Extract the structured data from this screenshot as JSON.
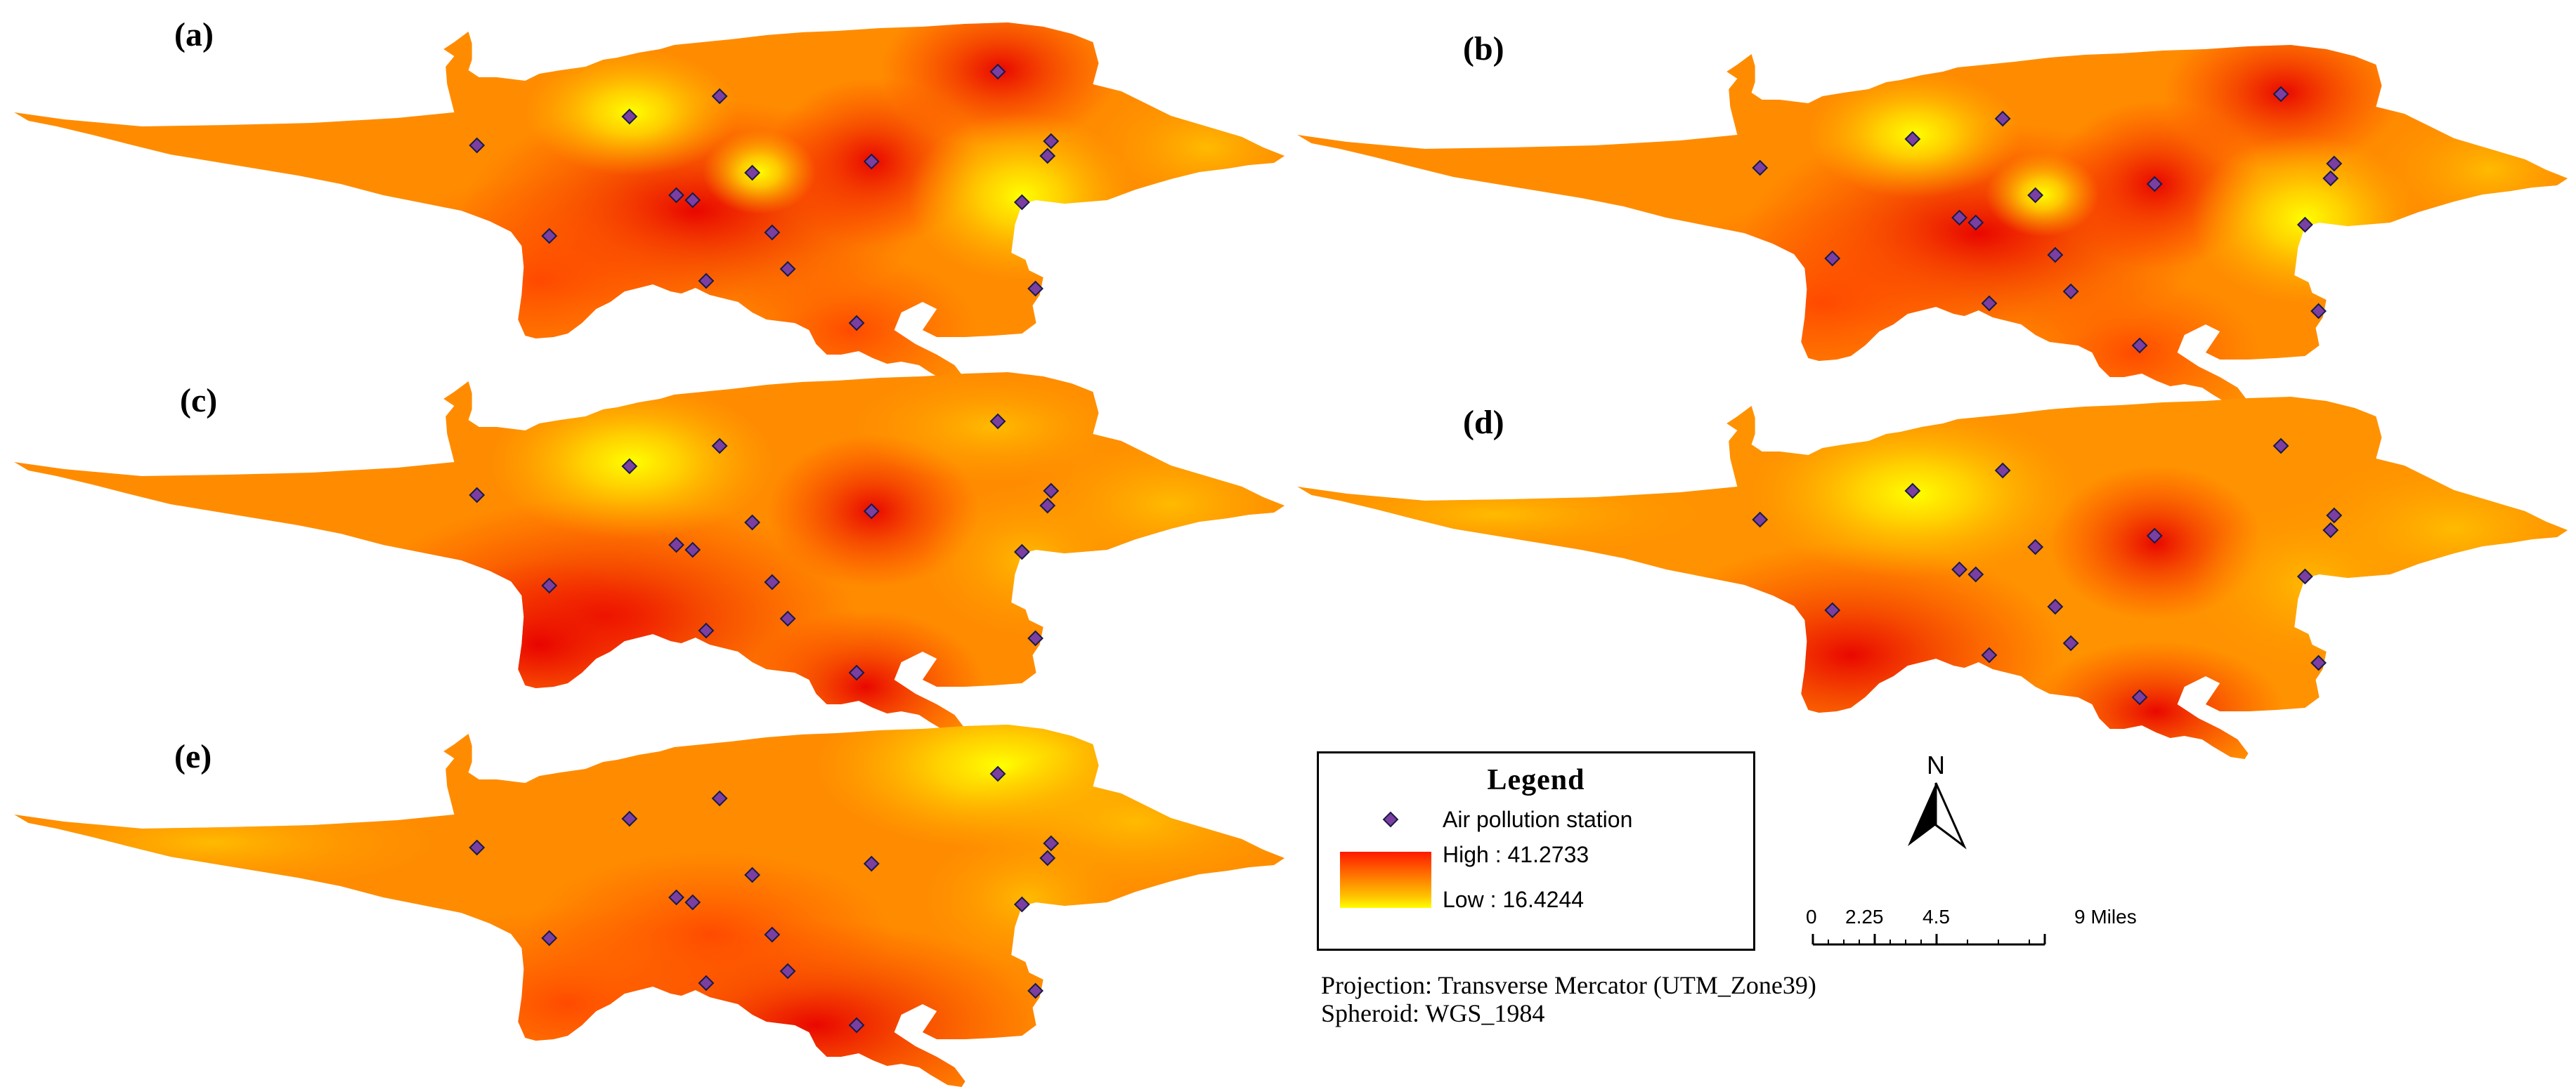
{
  "panels": [
    {
      "label": "(a)"
    },
    {
      "label": "(b)"
    },
    {
      "label": "(c)"
    },
    {
      "label": "(d)"
    },
    {
      "label": "(e)"
    }
  ],
  "legend": {
    "title": "Legend",
    "station_label": "Air pollution station",
    "high_label": "High : 41.2733",
    "low_label": "Low : 16.4244",
    "high_value": 41.2733,
    "low_value": 16.4244,
    "ramp_colors": [
      "#ff1a00",
      "#ff7a00",
      "#ffc400",
      "#ffff00"
    ]
  },
  "north_arrow": {
    "label": "N"
  },
  "scale_bar": {
    "ticks": [
      "0",
      "2.25",
      "4.5",
      "9 Miles"
    ]
  },
  "projection": {
    "line1": "Projection: Transverse Mercator (UTM_Zone39)",
    "line2": "Spheroid: WGS_1984"
  },
  "colors": {
    "station_fill": "#7a3fa0",
    "station_stroke": "#1a1a4a"
  }
}
